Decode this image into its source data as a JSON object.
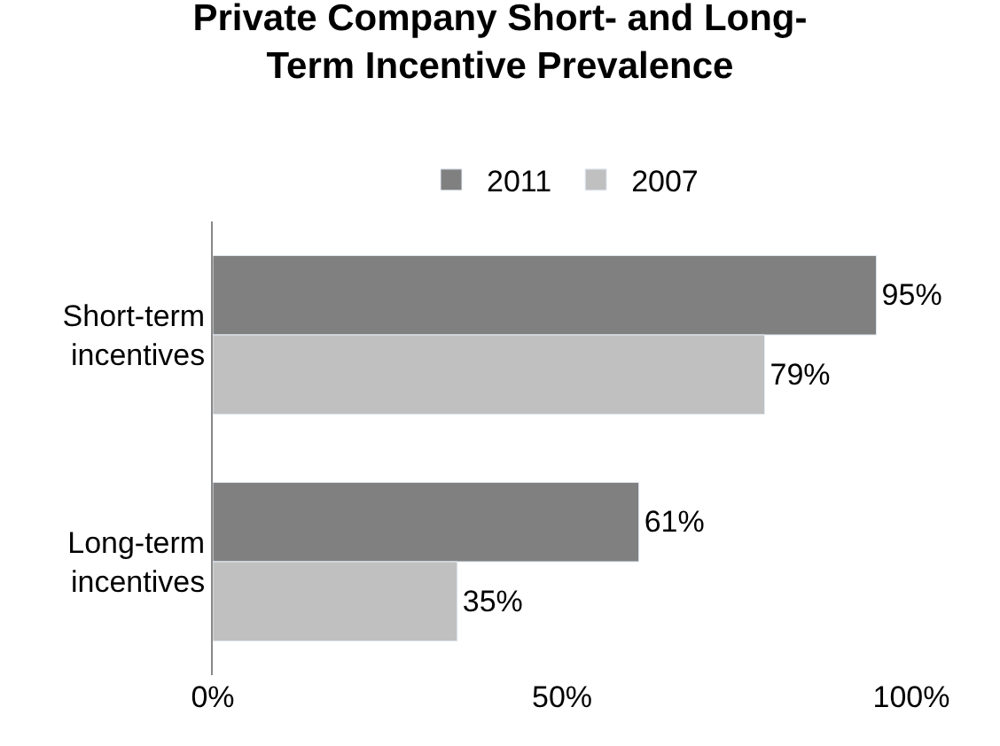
{
  "chart_data": {
    "type": "bar",
    "orientation": "horizontal",
    "title": "Private Company Short- and Long-Term Incentive Prevalence",
    "categories": [
      "Short-term incentives",
      "Long-term incentives"
    ],
    "series": [
      {
        "name": "2011",
        "color": "#808080",
        "values": [
          95,
          61
        ],
        "value_labels": [
          "95%",
          "61%"
        ]
      },
      {
        "name": "2007",
        "color": "#c0c0c0",
        "values": [
          79,
          35
        ],
        "value_labels": [
          "79%",
          "35%"
        ]
      }
    ],
    "xlim": [
      0,
      100
    ],
    "xticks": [
      {
        "value": 0,
        "label": "0%"
      },
      {
        "value": 50,
        "label": "50%"
      },
      {
        "value": 100,
        "label": "100%"
      }
    ],
    "legend": "top"
  }
}
